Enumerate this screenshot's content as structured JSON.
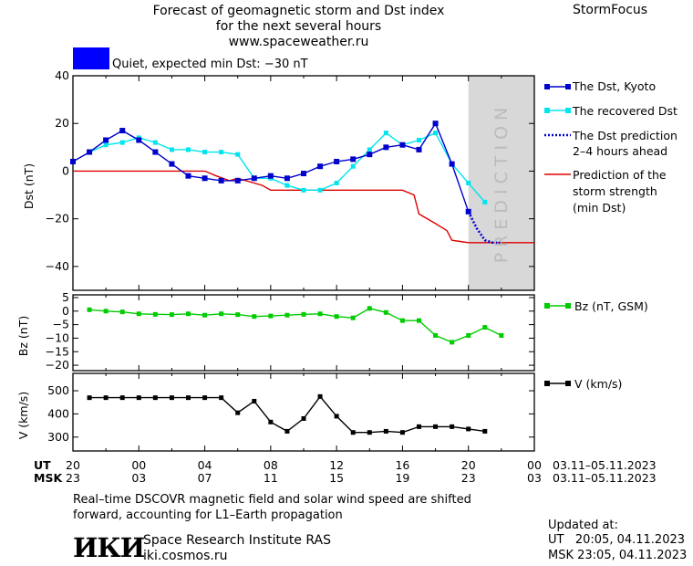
{
  "header": {
    "title_line1": "Forecast of geomagnetic storm and Dst index",
    "title_line2": "for the next several hours",
    "title_line3": "www.spaceweather.ru",
    "brand": "StormFocus"
  },
  "status": {
    "color": "#0000ff",
    "text": "Quiet, expected min Dst: −30 nT"
  },
  "legend": {
    "dst_kyoto": "The Dst, Kyoto",
    "dst_recovered": "The recovered Dst",
    "dst_pred_line1": "The Dst prediction",
    "dst_pred_line2": "2–4 hours ahead",
    "storm_line1": "Prediction of the",
    "storm_line2": "storm strength",
    "storm_line3": "(min Dst)",
    "bz": "Bz (nT, GSM)",
    "v": "V (km/s)"
  },
  "prediction_label": "PREDICTION",
  "axes": {
    "dst_ylabel": "Dst (nT)",
    "bz_ylabel": "Bz (nT)",
    "v_ylabel": "V (km/s)",
    "ut_label": "UT",
    "msk_label": "MSK",
    "ut_ticks": [
      "20",
      "00",
      "04",
      "08",
      "12",
      "16",
      "20",
      "00"
    ],
    "msk_ticks": [
      "23",
      "03",
      "07",
      "11",
      "15",
      "19",
      "23",
      "03"
    ],
    "date_range_ut": "03.11–05.11.2023",
    "date_range_msk": "03.11–05.11.2023"
  },
  "footer": {
    "note_line1": "Real–time DSCOVR magnetic field and solar wind speed are shifted",
    "note_line2": "forward, accounting for L1–Earth propagation",
    "logo": "ИКИ",
    "institute": "Space Research Institute RAS",
    "site": "iki.cosmos.ru",
    "updated_label": "Updated at:",
    "updated_ut": "UT   20:05, 04.11.2023",
    "updated_msk": "MSK 23:05, 04.11.2023"
  },
  "colors": {
    "kyoto": "#0000cc",
    "recovered": "#00e5ee",
    "prediction": "#0000cc",
    "storm": "#dd0000",
    "bz": "#00cc00",
    "v": "#000000",
    "prediction_zone": "#d8d8d8"
  },
  "chart_data": [
    {
      "type": "line",
      "name": "Dst panel",
      "x_unit": "hours since 20 UT 03.11.2023",
      "xlim": [
        0,
        28
      ],
      "ylabel": "Dst (nT)",
      "ylim": [
        -50,
        40
      ],
      "yticks": [
        40,
        20,
        0,
        -20,
        -40
      ],
      "prediction_zone_x": [
        24,
        28
      ],
      "series": [
        {
          "name": "The Dst, Kyoto",
          "x": [
            0,
            1,
            2,
            3,
            4,
            5,
            6,
            7,
            8,
            9,
            10,
            11,
            12,
            13,
            14,
            15,
            16,
            17,
            18,
            19,
            20,
            21,
            22,
            23,
            24
          ],
          "y": [
            4,
            8,
            13,
            17,
            13,
            8,
            3,
            -2,
            -3,
            -4,
            -4,
            -3,
            -2,
            -3,
            -1,
            2,
            4,
            5,
            7,
            10,
            11,
            9,
            20,
            3,
            -17
          ]
        },
        {
          "name": "The recovered Dst",
          "x": [
            1,
            2,
            3,
            4,
            5,
            6,
            7,
            8,
            9,
            10,
            11,
            12,
            13,
            14,
            15,
            16,
            17,
            18,
            19,
            20,
            21,
            22,
            23,
            24,
            25
          ],
          "y": [
            8,
            11,
            12,
            14,
            12,
            9,
            9,
            8,
            8,
            7,
            -3,
            -3,
            -6,
            -8,
            -8,
            -5,
            2,
            9,
            16,
            11,
            13,
            16,
            3,
            -5,
            -13
          ]
        },
        {
          "name": "The Dst prediction 2–4 hours ahead",
          "x": [
            24,
            24.5,
            25,
            25.5,
            26
          ],
          "y": [
            -17,
            -24,
            -29,
            -30,
            -30
          ]
        },
        {
          "name": "Prediction of the storm strength (min Dst)",
          "x": [
            0,
            8,
            8.7,
            9.5,
            10,
            11.5,
            12,
            14,
            20,
            20.7,
            21,
            22,
            22.7,
            23,
            24,
            28
          ],
          "y": [
            0,
            0,
            -2,
            -4,
            -3,
            -6,
            -8,
            -8,
            -8,
            -10,
            -18,
            -22,
            -25,
            -29,
            -30,
            -30
          ]
        }
      ]
    },
    {
      "type": "line",
      "name": "Bz panel",
      "ylabel": "Bz (nT)",
      "ylim": [
        -22,
        6
      ],
      "yticks": [
        5,
        0,
        -5,
        -10,
        -15,
        -20
      ],
      "series": [
        {
          "name": "Bz (nT, GSM)",
          "x": [
            1,
            2,
            3,
            4,
            5,
            6,
            7,
            8,
            9,
            10,
            11,
            12,
            13,
            14,
            15,
            16,
            17,
            18,
            19,
            20,
            21,
            22,
            23,
            24,
            25,
            26
          ],
          "y": [
            0.5,
            0,
            -0.3,
            -1,
            -1.2,
            -1.3,
            -1,
            -1.5,
            -1,
            -1.3,
            -2,
            -1.8,
            -1.5,
            -1.2,
            -1,
            -2,
            -2.5,
            1,
            -0.5,
            -3.5,
            -3.5,
            -9,
            -11.5,
            -9,
            -6,
            -9
          ]
        }
      ]
    },
    {
      "type": "line",
      "name": "V panel",
      "ylabel": "V (km/s)",
      "ylim": [
        240,
        575
      ],
      "yticks": [
        500,
        400,
        300
      ],
      "series": [
        {
          "name": "V (km/s)",
          "x": [
            1,
            2,
            3,
            4,
            5,
            6,
            7,
            8,
            9,
            10,
            11,
            12,
            13,
            14,
            15,
            16,
            17,
            18,
            19,
            20,
            21,
            22,
            23,
            24,
            25
          ],
          "y": [
            470,
            470,
            470,
            470,
            470,
            470,
            470,
            470,
            470,
            405,
            455,
            365,
            325,
            380,
            475,
            390,
            320,
            320,
            325,
            320,
            345,
            345,
            345,
            335,
            325
          ]
        }
      ]
    }
  ]
}
